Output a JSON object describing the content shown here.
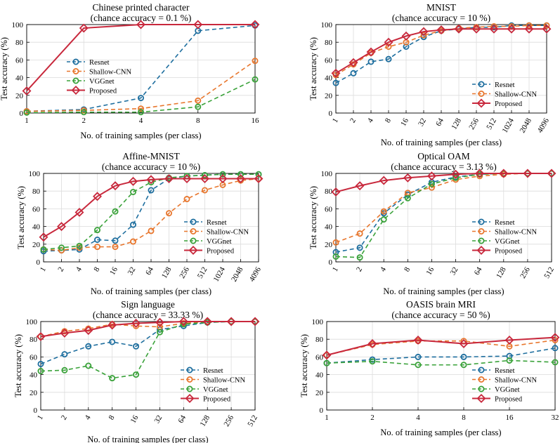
{
  "colors": {
    "resnet": "#1f6f9f",
    "shallow": "#e8772e",
    "vgg": "#3aa23a",
    "proposed": "#c8283c",
    "grid": "#dcdcdc"
  },
  "chart_data": [
    {
      "type": "line",
      "title": "Chinese printed character",
      "subtitle": "(chance accuracy = 0.1 %)",
      "xlabel": "No. of training samples (per class)",
      "ylabel": "Test accuracy (%)",
      "categories": [
        "1",
        "2",
        "4",
        "8",
        "16"
      ],
      "ylim": [
        0,
        100
      ],
      "yticks": [
        0,
        20,
        40,
        60,
        80,
        100
      ],
      "legend": "center-left",
      "grid": true,
      "series": [
        {
          "name": "Resnet",
          "values": [
            2,
            4,
            17,
            93,
            99
          ]
        },
        {
          "name": "Shallow-CNN",
          "values": [
            2,
            3,
            5,
            14,
            59
          ]
        },
        {
          "name": "VGGnet",
          "values": [
            0.5,
            1,
            1,
            7,
            38
          ]
        },
        {
          "name": "Proposed",
          "values": [
            25,
            96,
            100,
            100,
            100
          ]
        }
      ]
    },
    {
      "type": "line",
      "title": "MNIST",
      "subtitle": "(chance accuracy = 10 %)",
      "xlabel": "No. of training samples (per class)",
      "ylabel": "Test accuracy (%)",
      "categories": [
        "1",
        "2",
        "4",
        "8",
        "16",
        "32",
        "64",
        "128",
        "256",
        "512",
        "1024",
        "2048",
        "4096"
      ],
      "ylim": [
        0,
        100
      ],
      "yticks": [
        0,
        20,
        40,
        60,
        80,
        100
      ],
      "legend": "bottom-right",
      "grid": true,
      "series": [
        {
          "name": "Resnet",
          "values": [
            34,
            45,
            58,
            61,
            75,
            86,
            93,
            95,
            97,
            97,
            99,
            99,
            99
          ]
        },
        {
          "name": "Shallow-CNN",
          "values": [
            43,
            55,
            68,
            75,
            80,
            88,
            93,
            96,
            97,
            98,
            98,
            99,
            99
          ]
        },
        {
          "name": "Proposed",
          "values": [
            45,
            57,
            69,
            80,
            87,
            92,
            94,
            95,
            95,
            95,
            95,
            95,
            95
          ]
        }
      ]
    },
    {
      "type": "line",
      "title": "Affine-MNIST",
      "subtitle": "(chance accuracy = 10 %)",
      "xlabel": "No. of training samples (per class)",
      "ylabel": "Test accuracy (%)",
      "categories": [
        "1",
        "2",
        "4",
        "8",
        "16",
        "32",
        "64",
        "128",
        "256",
        "512",
        "1024",
        "2048",
        "4096"
      ],
      "ylim": [
        0,
        100
      ],
      "yticks": [
        0,
        20,
        40,
        60,
        80,
        100
      ],
      "legend": "bottom-right",
      "grid": true,
      "series": [
        {
          "name": "Resnet",
          "values": [
            12,
            13,
            14,
            25,
            24,
            42,
            81,
            94,
            97,
            98,
            99,
            99,
            99
          ]
        },
        {
          "name": "Shallow-CNN",
          "values": [
            14,
            13,
            16,
            17,
            17,
            23,
            35,
            55,
            71,
            81,
            87,
            92,
            94
          ]
        },
        {
          "name": "VGGnet",
          "values": [
            14,
            16,
            18,
            36,
            57,
            79,
            90,
            95,
            97,
            98,
            99,
            99,
            99
          ]
        },
        {
          "name": "Proposed",
          "values": [
            28,
            40,
            56,
            74,
            86,
            91,
            93,
            94,
            94,
            94,
            94,
            94,
            94
          ]
        }
      ]
    },
    {
      "type": "line",
      "title": "Optical OAM",
      "subtitle": "(chance accuracy = 3.13 %)",
      "xlabel": "No. of training samples (per class)",
      "ylabel": "Test accuracy (%)",
      "categories": [
        "1",
        "2",
        "4",
        "8",
        "16",
        "32",
        "64",
        "128",
        "256",
        "512"
      ],
      "ylim": [
        0,
        100
      ],
      "yticks": [
        0,
        20,
        40,
        60,
        80,
        100
      ],
      "legend": "bottom-right",
      "grid": true,
      "series": [
        {
          "name": "Resnet",
          "values": [
            11,
            16,
            55,
            76,
            90,
            96,
            99,
            100,
            100,
            100
          ]
        },
        {
          "name": "Shallow-CNN",
          "values": [
            22,
            32,
            57,
            78,
            84,
            93,
            97,
            99,
            100,
            100
          ]
        },
        {
          "name": "VGGnet",
          "values": [
            6,
            5,
            48,
            72,
            88,
            95,
            99,
            100,
            100,
            100
          ]
        },
        {
          "name": "Proposed",
          "values": [
            79,
            86,
            92,
            95,
            97,
            99,
            100,
            100,
            100,
            100
          ]
        }
      ]
    },
    {
      "type": "line",
      "title": "Sign language",
      "subtitle": "(chance accuracy = 33.33 %)",
      "xlabel": "No. of training samples (per class)",
      "ylabel": "Test accuracy (%)",
      "categories": [
        "1",
        "2",
        "4",
        "8",
        "16",
        "32",
        "64",
        "128",
        "256",
        "512"
      ],
      "ylim": [
        0,
        100
      ],
      "yticks": [
        0,
        20,
        40,
        60,
        80,
        100
      ],
      "legend": "bottom-right",
      "grid": true,
      "series": [
        {
          "name": "Resnet",
          "values": [
            52,
            63,
            72,
            77,
            72,
            91,
            95,
            99,
            100,
            100
          ]
        },
        {
          "name": "Shallow-CNN",
          "values": [
            83,
            89,
            92,
            97,
            95,
            94,
            98,
            100,
            100,
            100
          ]
        },
        {
          "name": "VGGnet",
          "values": [
            44,
            45,
            50,
            36,
            40,
            88,
            97,
            99,
            100,
            100
          ]
        },
        {
          "name": "Proposed",
          "values": [
            83,
            87,
            90,
            96,
            98,
            99,
            100,
            100,
            100,
            100
          ]
        }
      ]
    },
    {
      "type": "line",
      "title": "OASIS brain MRI",
      "subtitle": "(chance accuracy = 50 %)",
      "xlabel": "No. of training samples (per class)",
      "ylabel": "Test accuracy (%)",
      "categories": [
        "1",
        "2",
        "4",
        "8",
        "16",
        "32"
      ],
      "ylim": [
        0,
        100
      ],
      "yticks": [
        0,
        20,
        40,
        60,
        80,
        100
      ],
      "legend": "bottom-right",
      "grid": true,
      "series": [
        {
          "name": "Resnet",
          "values": [
            53,
            57,
            60,
            60,
            61,
            70
          ]
        },
        {
          "name": "Shallow-CNN",
          "values": [
            62,
            74,
            78,
            78,
            72,
            79
          ]
        },
        {
          "name": "VGGnet",
          "values": [
            53,
            55,
            51,
            51,
            56,
            54
          ]
        },
        {
          "name": "Proposed",
          "values": [
            62,
            75,
            79,
            75,
            79,
            82
          ]
        }
      ]
    }
  ]
}
